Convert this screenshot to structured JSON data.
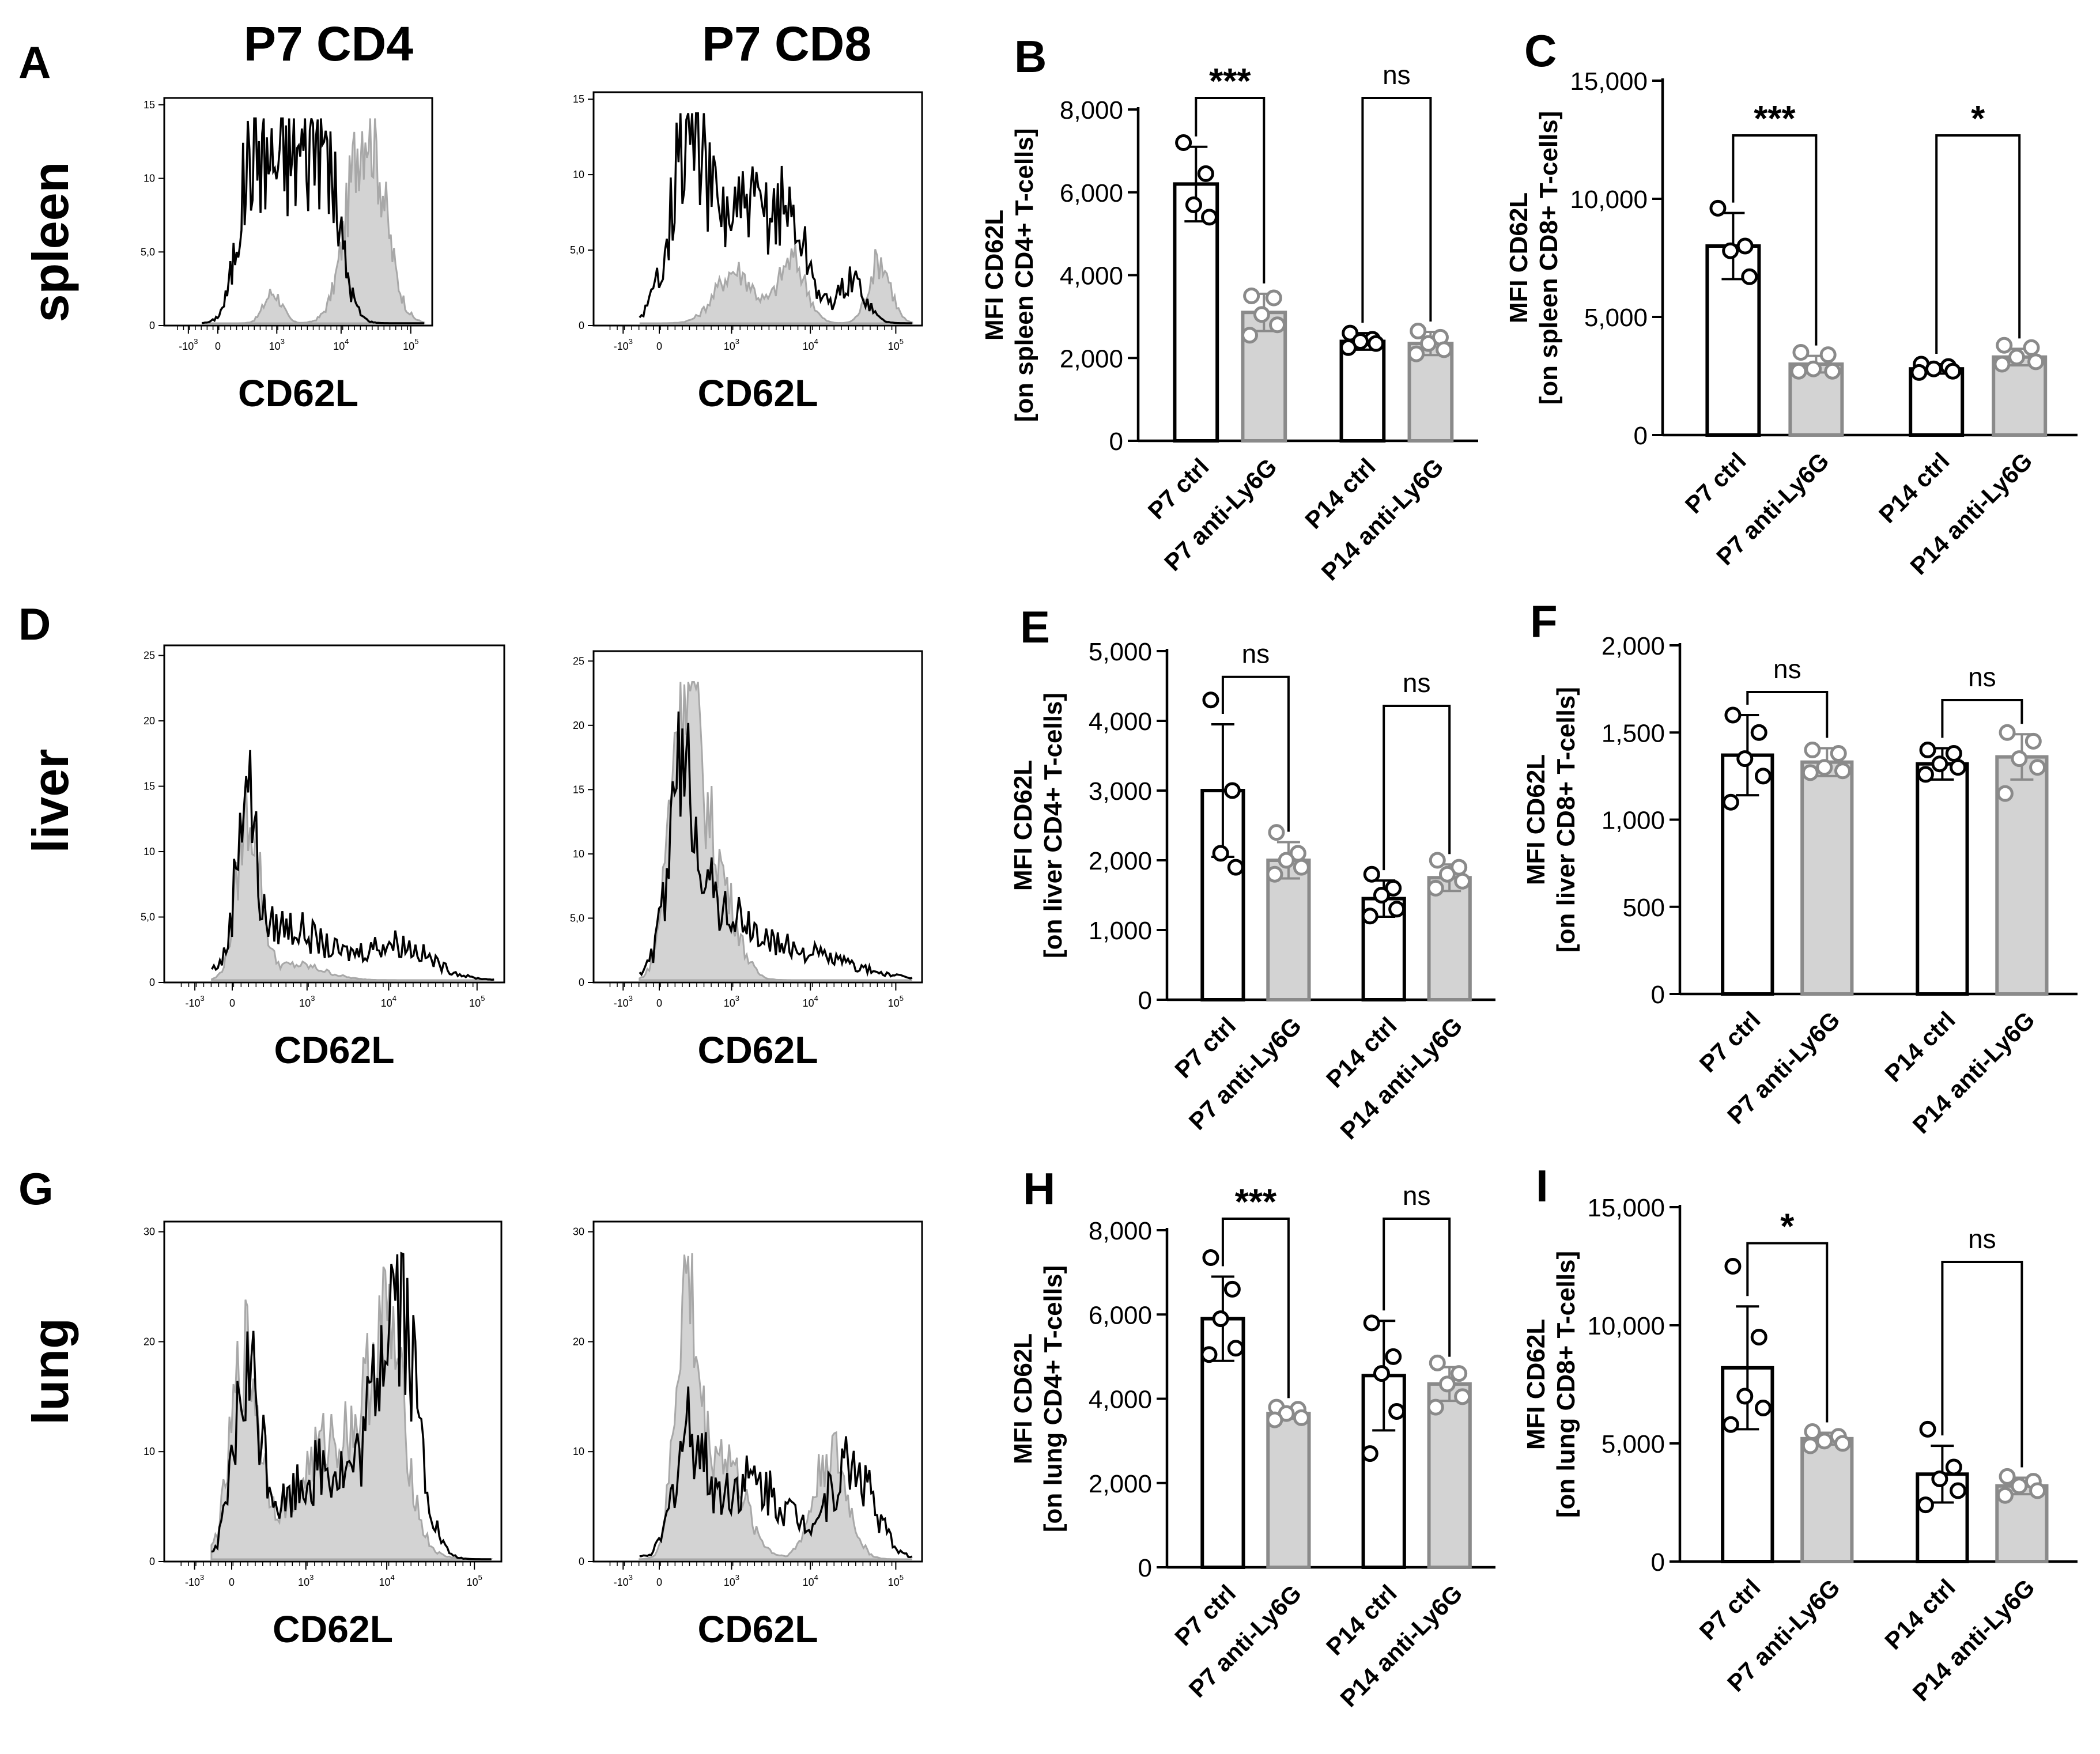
{
  "figure": {
    "col_titles": [
      "P7 CD4",
      "P7 CD8"
    ],
    "row_labels": [
      "spleen",
      "liver",
      "lung"
    ]
  },
  "histograms": [
    {
      "panel": "A",
      "row": 0,
      "col": 0,
      "xlabel": "CD62L",
      "yticks": [
        "0",
        "5,0",
        "10",
        "15"
      ],
      "ymax": 15,
      "grey_profile": "spleen-cd4",
      "black_profile": "spleen-cd4"
    },
    {
      "panel": "",
      "row": 0,
      "col": 1,
      "xlabel": "CD62L",
      "yticks": [
        "0",
        "5,0",
        "10",
        "15"
      ],
      "ymax": 15,
      "grey_profile": "spleen-cd8",
      "black_profile": "spleen-cd8"
    },
    {
      "panel": "D",
      "row": 1,
      "col": 0,
      "xlabel": "CD62L",
      "yticks": [
        "0",
        "5,0",
        "10",
        "15",
        "20",
        "25"
      ],
      "ymax": 25,
      "grey_profile": "liver-cd4",
      "black_profile": "liver-cd4"
    },
    {
      "panel": "",
      "row": 1,
      "col": 1,
      "xlabel": "CD62L",
      "yticks": [
        "0",
        "5,0",
        "10",
        "15",
        "20",
        "25"
      ],
      "ymax": 25,
      "grey_profile": "liver-cd8",
      "black_profile": "liver-cd8"
    },
    {
      "panel": "G",
      "row": 2,
      "col": 0,
      "xlabel": "CD62L",
      "yticks": [
        "0",
        "10",
        "20",
        "30"
      ],
      "ymax": 30,
      "grey_profile": "lung-cd4",
      "black_profile": "lung-cd4"
    },
    {
      "panel": "",
      "row": 2,
      "col": 1,
      "xlabel": "CD62L",
      "yticks": [
        "0",
        "10",
        "20",
        "30"
      ],
      "ymax": 30,
      "grey_profile": "lung-cd8",
      "black_profile": "lung-cd8"
    }
  ],
  "xticks": [
    "-10",
    "0",
    "10",
    "10",
    "10"
  ],
  "xtick_exps": [
    "3",
    "",
    "3",
    "4",
    "5"
  ],
  "chart_data": [
    {
      "panel": "B",
      "type": "bar",
      "ylabel": [
        "MFI CD62L",
        "[on spleen CD4+  T-cells]"
      ],
      "ylim": [
        0,
        8000
      ],
      "ytick_values": [
        0,
        2000,
        4000,
        6000,
        8000
      ],
      "yticks": [
        "0",
        "2,000",
        "4,000",
        "6,000",
        "8,000"
      ],
      "categories": [
        "P7 ctrl",
        "P7 anti-Ly6G",
        "P14 ctrl",
        "P14 anti-Ly6G"
      ],
      "values": [
        6200,
        3100,
        2400,
        2350
      ],
      "sd": [
        900,
        450,
        200,
        280
      ],
      "points": [
        [
          7200,
          6450,
          5700,
          5400
        ],
        [
          3500,
          3450,
          3050,
          2800,
          2550
        ],
        [
          2600,
          2450,
          2400,
          2350,
          2250
        ],
        [
          2650,
          2500,
          2350,
          2200,
          2100
        ]
      ],
      "sig": [
        {
          "label": "***"
        },
        {
          "label": "ns"
        }
      ]
    },
    {
      "panel": "C",
      "type": "bar",
      "ylabel": [
        "MFI CD62L",
        "[on spleen CD8+  T-cells]"
      ],
      "ylim": [
        0,
        15000
      ],
      "ytick_values": [
        0,
        5000,
        10000,
        15000
      ],
      "yticks": [
        "0",
        "5,000",
        "10,000",
        "15,000"
      ],
      "categories": [
        "P7 ctrl",
        "P7 anti-Ly6G",
        "P14 ctrl",
        "P14 anti-Ly6G"
      ],
      "values": [
        8000,
        3000,
        2800,
        3300
      ],
      "sd": [
        1400,
        350,
        200,
        350
      ],
      "points": [
        [
          9600,
          8000,
          7800,
          6700
        ],
        [
          3500,
          3400,
          2800,
          2700,
          2700
        ],
        [
          3000,
          2900,
          2800,
          2700,
          2650
        ],
        [
          3800,
          3700,
          3300,
          3100,
          3000
        ]
      ],
      "sig": [
        {
          "label": "***"
        },
        {
          "label": "*"
        }
      ]
    },
    {
      "panel": "E",
      "type": "bar",
      "ylabel": [
        "MFI CD62L",
        "[on liver CD4+  T-cells]"
      ],
      "ylim": [
        0,
        5000
      ],
      "ytick_values": [
        0,
        1000,
        2000,
        3000,
        4000,
        5000
      ],
      "yticks": [
        "0",
        "1,000",
        "2,000",
        "3,000",
        "4,000",
        "5,000"
      ],
      "categories": [
        "P7 ctrl",
        "P7 anti-Ly6G",
        "P14 ctrl",
        "P14 anti-Ly6G"
      ],
      "values": [
        3000,
        2000,
        1450,
        1750
      ],
      "sd": [
        950,
        260,
        260,
        190
      ],
      "points": [
        [
          4300,
          3000,
          2100,
          1900
        ],
        [
          2400,
          2100,
          2000,
          1900,
          1800
        ],
        [
          1800,
          1600,
          1500,
          1300,
          1200
        ],
        [
          2000,
          1900,
          1800,
          1700,
          1600
        ]
      ],
      "sig": [
        {
          "label": "ns"
        },
        {
          "label": "ns"
        }
      ]
    },
    {
      "panel": "F",
      "type": "bar",
      "ylabel": [
        "MFI CD62L",
        "[on liver CD8+  T-cells]"
      ],
      "ylim": [
        0,
        2000
      ],
      "ytick_values": [
        0,
        500,
        1000,
        1500,
        2000
      ],
      "yticks": [
        "0",
        "500",
        "1,000",
        "1,500",
        "2,000"
      ],
      "categories": [
        "P7 ctrl",
        "P7 anti-Ly6G",
        "P14 ctrl",
        "P14 anti-Ly6G"
      ],
      "values": [
        1370,
        1330,
        1320,
        1360
      ],
      "sd": [
        230,
        80,
        90,
        130
      ],
      "points": [
        [
          1600,
          1500,
          1350,
          1250,
          1100
        ],
        [
          1400,
          1380,
          1300,
          1280,
          1270
        ],
        [
          1400,
          1380,
          1320,
          1300,
          1260
        ],
        [
          1500,
          1450,
          1350,
          1300,
          1150
        ]
      ],
      "sig": [
        {
          "label": "ns"
        },
        {
          "label": "ns"
        }
      ]
    },
    {
      "panel": "H",
      "type": "bar",
      "ylabel": [
        "MFI CD62L",
        "[on lung CD4+  T-cells]"
      ],
      "ylim": [
        0,
        8000
      ],
      "ytick_values": [
        0,
        2000,
        4000,
        6000,
        8000
      ],
      "yticks": [
        "0",
        "2,000",
        "4,000",
        "6,000",
        "8,000"
      ],
      "categories": [
        "P7 ctrl",
        "P7 anti-Ly6G",
        "P14 ctrl",
        "P14 anti-Ly6G"
      ],
      "values": [
        5900,
        3650,
        4550,
        4350
      ],
      "sd": [
        1000,
        120,
        1300,
        400
      ],
      "points": [
        [
          7350,
          6600,
          5900,
          5200,
          5050
        ],
        [
          3800,
          3750,
          3650,
          3550,
          3500
        ],
        [
          5800,
          5000,
          4600,
          3700,
          2700
        ],
        [
          4850,
          4600,
          4350,
          4050,
          3800
        ]
      ],
      "sig": [
        {
          "label": "***"
        },
        {
          "label": "ns"
        }
      ]
    },
    {
      "panel": "I",
      "type": "bar",
      "ylabel": [
        "MFI CD62L",
        "[on lung CD8+  T-cells]"
      ],
      "ylim": [
        0,
        15000
      ],
      "ytick_values": [
        0,
        5000,
        10000,
        15000
      ],
      "yticks": [
        "0",
        "5,000",
        "10,000",
        "15,000"
      ],
      "categories": [
        "P7 ctrl",
        "P7 anti-Ly6G",
        "P14 ctrl",
        "P14 anti-Ly6G"
      ],
      "values": [
        8200,
        5200,
        3700,
        3200
      ],
      "sd": [
        2600,
        250,
        1200,
        350
      ],
      "points": [
        [
          12500,
          9500,
          7000,
          6500,
          5800
        ],
        [
          5500,
          5300,
          5100,
          5000,
          4900
        ],
        [
          5600,
          4000,
          3500,
          3000,
          2400
        ],
        [
          3600,
          3400,
          3200,
          3000,
          2800
        ]
      ],
      "sig": [
        {
          "label": "*"
        },
        {
          "label": "ns"
        }
      ]
    }
  ]
}
